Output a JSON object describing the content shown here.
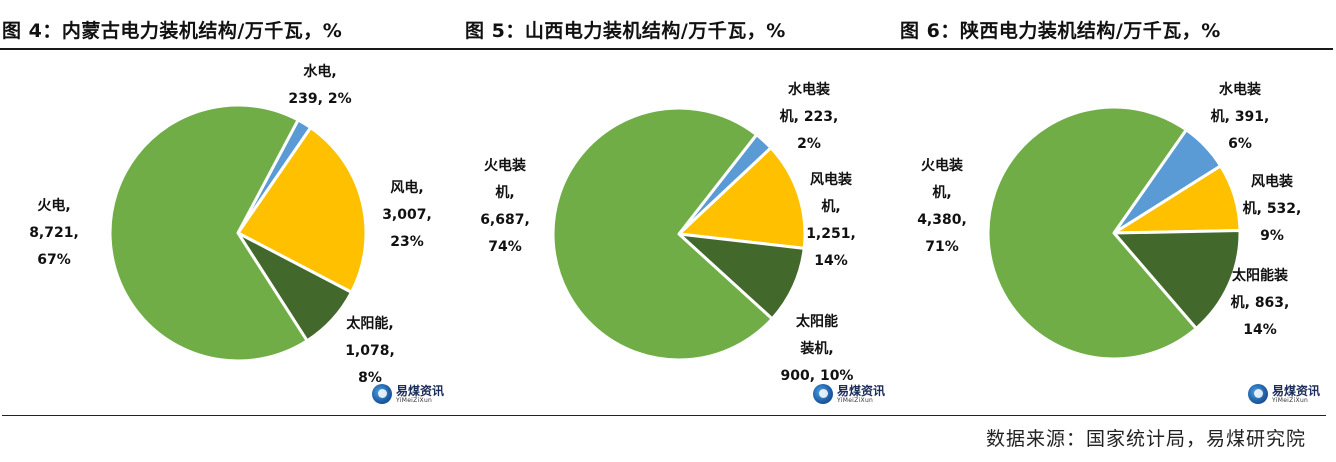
{
  "colors": {
    "thermal": "#70ad47",
    "hydro": "#5b9bd5",
    "wind": "#ffc000",
    "solar": "#43682b"
  },
  "watermark": {
    "cn": "易煤资讯",
    "en": "YiMeiZiXun"
  },
  "source": "数据来源：国家统计局，易煤研究院",
  "chart_data": [
    {
      "type": "pie",
      "title": "图 4：内蒙古电力装机结构/万千瓦，%",
      "slices": [
        {
          "key": "hydro",
          "label": [
            "水电,",
            "239, 2%"
          ],
          "value": 239,
          "percent": 2
        },
        {
          "key": "wind",
          "label": [
            "风电,",
            "3,007,",
            "23%"
          ],
          "value": 3007,
          "percent": 23
        },
        {
          "key": "solar",
          "label": [
            "太阳能,",
            "1,078,",
            "8%"
          ],
          "value": 1078,
          "percent": 8
        },
        {
          "key": "thermal",
          "label": [
            "火电,",
            "8,721,",
            "67%"
          ],
          "value": 8721,
          "percent": 67
        }
      ]
    },
    {
      "type": "pie",
      "title": "图 5：山西电力装机结构/万千瓦，%",
      "slices": [
        {
          "key": "hydro",
          "label": [
            "水电装",
            "机, 223,",
            "2%"
          ],
          "value": 223,
          "percent": 2
        },
        {
          "key": "wind",
          "label": [
            "风电装",
            "机,",
            "1,251,",
            "14%"
          ],
          "value": 1251,
          "percent": 14
        },
        {
          "key": "solar",
          "label": [
            "太阳能",
            "装机,",
            "900, 10%"
          ],
          "value": 900,
          "percent": 10
        },
        {
          "key": "thermal",
          "label": [
            "火电装",
            "机,",
            "6,687,",
            "74%"
          ],
          "value": 6687,
          "percent": 74
        }
      ]
    },
    {
      "type": "pie",
      "title": "图 6：陕西电力装机结构/万千瓦，%",
      "slices": [
        {
          "key": "hydro",
          "label": [
            "水电装",
            "机, 391,",
            "6%"
          ],
          "value": 391,
          "percent": 6
        },
        {
          "key": "wind",
          "label": [
            "风电装",
            "机, 532,",
            "9%"
          ],
          "value": 532,
          "percent": 9
        },
        {
          "key": "solar",
          "label": [
            "太阳能装",
            "机, 863,",
            "14%"
          ],
          "value": 863,
          "percent": 14
        },
        {
          "key": "thermal",
          "label": [
            "火电装",
            "机,",
            "4,380,",
            "71%"
          ],
          "value": 4380,
          "percent": 71
        }
      ]
    }
  ]
}
